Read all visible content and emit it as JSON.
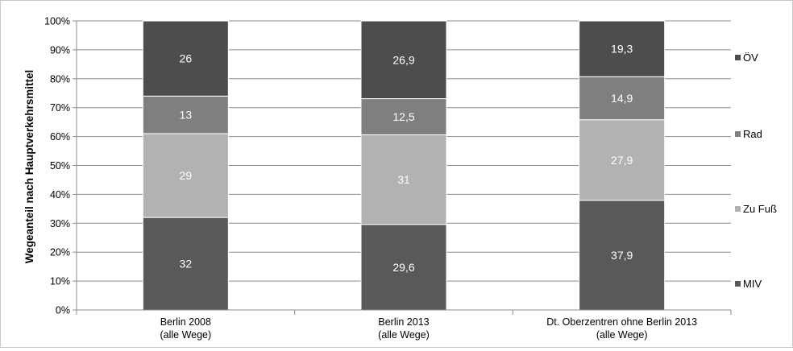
{
  "chart_data": {
    "type": "bar",
    "stacked": true,
    "percent_stacked": true,
    "title": "",
    "ylabel": "Wegeanteil nach Hauptverkehrsmittel",
    "xlabel": "",
    "ylim": [
      0,
      100
    ],
    "yticks": [
      "0%",
      "10%",
      "20%",
      "30%",
      "40%",
      "50%",
      "60%",
      "70%",
      "80%",
      "90%",
      "100%"
    ],
    "categories": [
      {
        "line1": "Berlin 2008",
        "line2": "(alle Wege)"
      },
      {
        "line1": "Berlin 2013",
        "line2": "(alle Wege)"
      },
      {
        "line1": "Dt. Oberzentren ohne Berlin 2013",
        "line2": "(alle Wege)"
      }
    ],
    "series": [
      {
        "name": "MIV",
        "color": "#595959",
        "values": [
          32,
          29.6,
          37.9
        ],
        "labels": [
          "32",
          "29,6",
          "37,9"
        ]
      },
      {
        "name": "Zu Fuß",
        "color": "#b2b2b2",
        "values": [
          29,
          31,
          27.9
        ],
        "labels": [
          "29",
          "31",
          "27,9"
        ]
      },
      {
        "name": "Rad",
        "color": "#7f7f7f",
        "values": [
          13,
          12.5,
          14.9
        ],
        "labels": [
          "13",
          "12,5",
          "14,9"
        ]
      },
      {
        "name": "ÖV",
        "color": "#4d4d4d",
        "values": [
          26,
          26.9,
          19.3
        ],
        "labels": [
          "26",
          "26,9",
          "19,3"
        ]
      }
    ],
    "grid": true,
    "legend_position": "right"
  }
}
